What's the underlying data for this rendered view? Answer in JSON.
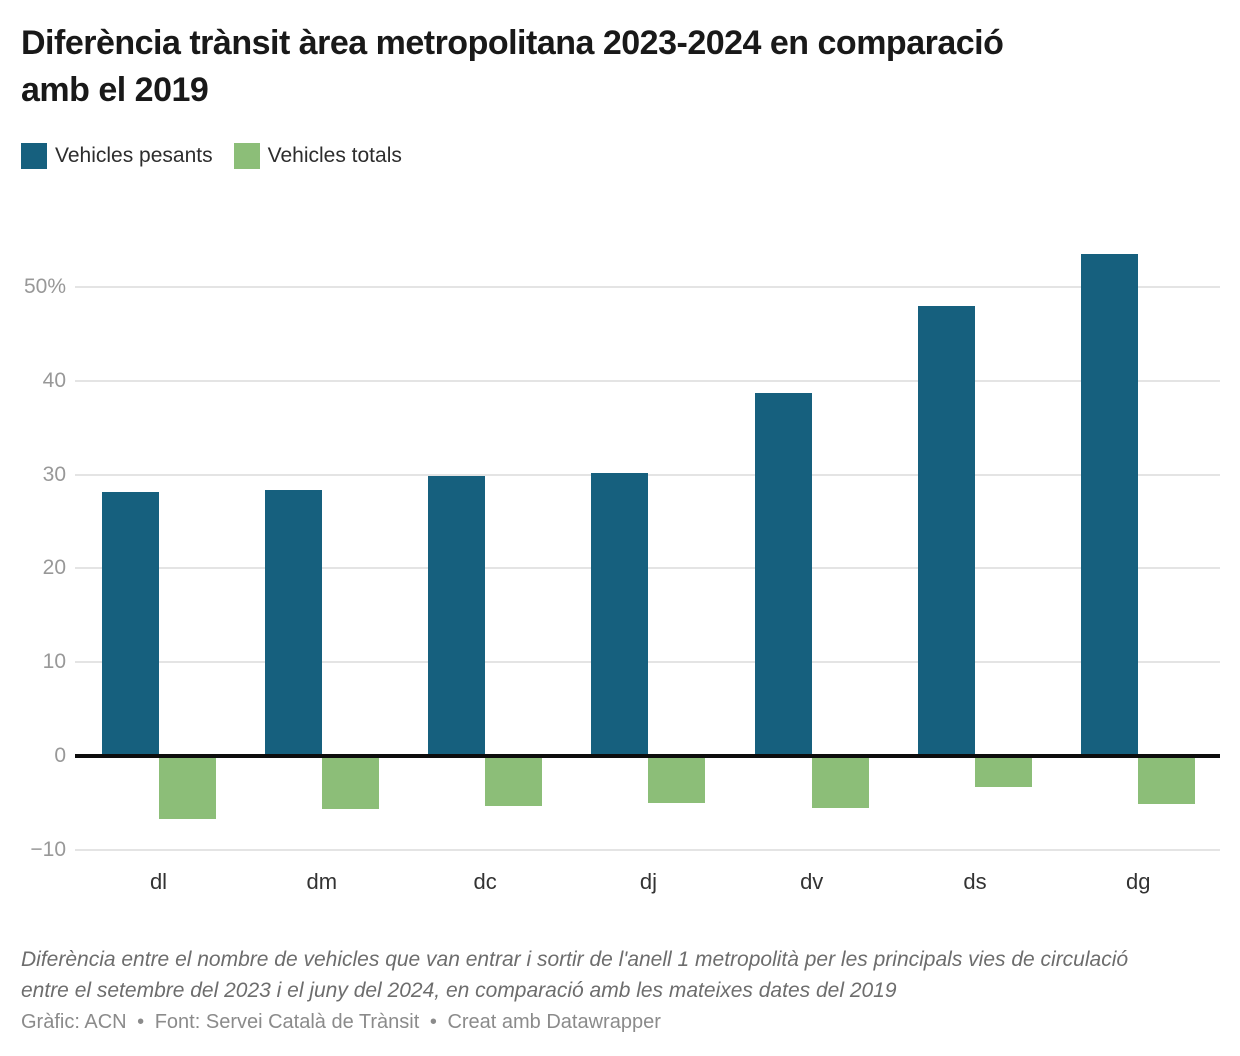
{
  "header": {
    "title": "Diferència trànsit àrea metropolitana 2023-2024 en comparació amb el 2019"
  },
  "legend": {
    "items": [
      {
        "id": "pesants",
        "label": "Vehicles pesants",
        "color": "#16607e"
      },
      {
        "id": "totals",
        "label": "Vehicles totals",
        "color": "#8cbe78"
      }
    ]
  },
  "chart_data": {
    "type": "bar",
    "title": "Diferència trànsit àrea metropolitana 2023-2024 en comparació amb el 2019",
    "categories": [
      "dl",
      "dm",
      "dc",
      "dj",
      "dv",
      "ds",
      "dg"
    ],
    "series": [
      {
        "id": "pesants",
        "name": "Vehicles pesants",
        "color": "#16607e",
        "values": [
          28.1,
          28.4,
          29.8,
          30.2,
          38.7,
          48.0,
          53.5
        ]
      },
      {
        "id": "totals",
        "name": "Vehicles totals",
        "color": "#8cbe78",
        "values": [
          -6.7,
          -5.6,
          -5.3,
          -5.0,
          -5.5,
          -3.3,
          -5.1
        ]
      }
    ],
    "xlabel": "",
    "ylabel": "",
    "unit": "%",
    "ylim": [
      -10,
      55
    ],
    "baseline": 0,
    "grid": true,
    "legend_position": "top-left",
    "y_ticks": [
      {
        "value": 50,
        "label": "50%"
      },
      {
        "value": 40,
        "label": "40"
      },
      {
        "value": 30,
        "label": "30"
      },
      {
        "value": 20,
        "label": "20"
      },
      {
        "value": 10,
        "label": "10"
      },
      {
        "value": 0,
        "label": "0"
      },
      {
        "value": -10,
        "label": "−10"
      }
    ],
    "gridline_color": "#e4e4e4",
    "baseline_color": "#0d0d0d"
  },
  "note": {
    "text": "Diferència entre el nombre de vehicles que van entrar i sortir de l'anell 1 metropolità per les principals vies de circulació entre el setembre del 2023 i el juny del 2024, en comparació amb les mateixes dates del 2019"
  },
  "footer": {
    "credit": "Gràfic: ACN",
    "source": "Font: Servei Català de Trànsit",
    "tool": "Creat amb Datawrapper",
    "separator": "•"
  }
}
